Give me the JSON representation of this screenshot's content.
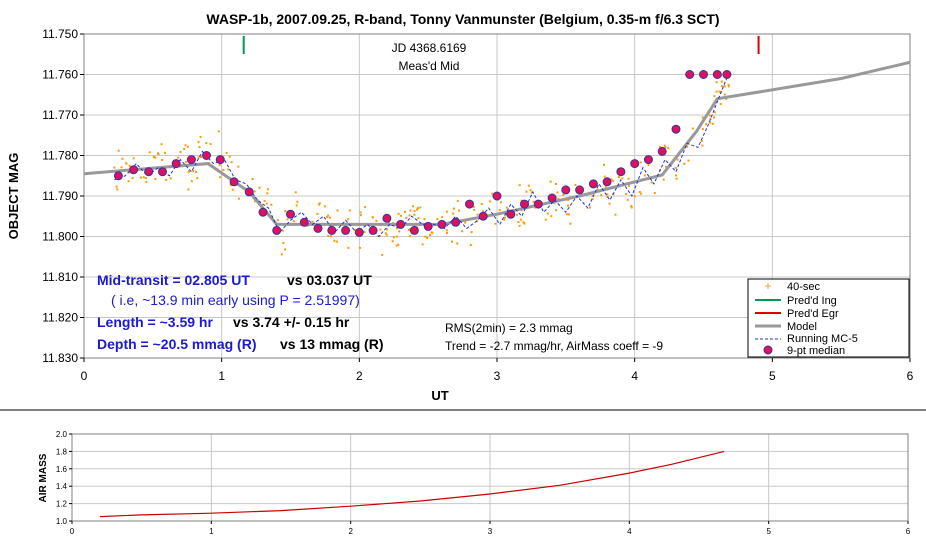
{
  "chart_data": [
    {
      "type": "scatter",
      "title": "WASP-1b, 2007.09.25, R-band, Tonny Vanmunster (Belgium, 0.35-m f/6.3 SCT)",
      "xlabel": "UT",
      "ylabel": "OBJECT MAG",
      "xlim": [
        0,
        6
      ],
      "ylim": [
        11.75,
        11.83
      ],
      "y_inverted": true,
      "grid": true,
      "legend_position": "bottom-right",
      "xticks": [
        "0",
        "1",
        "2",
        "3",
        "4",
        "5",
        "6"
      ],
      "yticks": [
        "11.750",
        "11.760",
        "11.770",
        "11.780",
        "11.790",
        "11.800",
        "11.810",
        "11.820",
        "11.830"
      ],
      "annotations": {
        "jd_line1": "JD 4368.6169",
        "jd_line2": "Meas'd Mid",
        "midtransit_label": "Mid-transit = 02.805 UT",
        "midtransit_vs": "vs 03.037 UT",
        "early_note": "( i.e, ~13.9 min early using P = 2.51997)",
        "length_label": "Length = ~3.59 hr",
        "length_vs": "vs 3.74 +/- 0.15 hr",
        "depth_label": "Depth = ~20.5 mmag (R)",
        "depth_vs": "vs 13 mmag (R)",
        "rms": "RMS(2min) = 2.3 mmag",
        "trend": "Trend = -2.7 mmag/hr, AirMass coeff = -9"
      },
      "markers": {
        "ingress_x": 1.16,
        "egress_x": 4.9
      },
      "series": [
        {
          "name": "40-sec",
          "color": "#ff9900",
          "style": "dots",
          "noise_seed": 7,
          "count": 330,
          "x_range": [
            0.22,
            4.72
          ]
        },
        {
          "name": "Pred'd Ing",
          "color": "#00994d"
        },
        {
          "name": "Pred'd Egr",
          "color": "#dd0000"
        },
        {
          "name": "Model",
          "color": "#999999",
          "x": [
            0,
            0.9,
            1.2,
            1.4,
            2.0,
            2.6,
            3.0,
            3.6,
            4.2,
            4.45,
            4.6,
            5.5,
            6.0
          ],
          "y": [
            11.7845,
            11.782,
            11.789,
            11.797,
            11.797,
            11.797,
            11.7945,
            11.79,
            11.7848,
            11.774,
            11.766,
            11.761,
            11.757
          ]
        },
        {
          "name": "Running MC-5",
          "color": "#2233cc",
          "x": [
            0.22,
            0.3,
            0.38,
            0.46,
            0.54,
            0.62,
            0.7,
            0.78,
            0.86,
            0.94,
            1.02,
            1.1,
            1.18,
            1.26,
            1.34,
            1.42,
            1.5,
            1.58,
            1.66,
            1.74,
            1.82,
            1.9,
            1.98,
            2.06,
            2.14,
            2.22,
            2.3,
            2.38,
            2.46,
            2.54,
            2.62,
            2.7,
            2.78,
            2.86,
            2.94,
            3.02,
            3.1,
            3.18,
            3.26,
            3.34,
            3.42,
            3.5,
            3.58,
            3.66,
            3.74,
            3.82,
            3.9,
            3.98,
            4.06,
            4.14,
            4.22,
            4.3,
            4.38,
            4.46,
            4.54,
            4.62,
            4.68
          ],
          "y": [
            11.786,
            11.785,
            11.782,
            11.785,
            11.783,
            11.785,
            11.781,
            11.784,
            11.779,
            11.782,
            11.781,
            11.786,
            11.787,
            11.791,
            11.793,
            11.799,
            11.796,
            11.794,
            11.797,
            11.795,
            11.799,
            11.796,
            11.799,
            11.797,
            11.8,
            11.797,
            11.798,
            11.795,
            11.797,
            11.797,
            11.798,
            11.795,
            11.798,
            11.796,
            11.793,
            11.797,
            11.792,
            11.795,
            11.789,
            11.794,
            11.791,
            11.794,
            11.79,
            11.793,
            11.787,
            11.791,
            11.786,
            11.79,
            11.783,
            11.787,
            11.781,
            11.784,
            11.777,
            11.778,
            11.772,
            11.765,
            11.76
          ]
        },
        {
          "name": "9-pt median",
          "color": "#e0105a",
          "x": [
            0.25,
            0.36,
            0.47,
            0.57,
            0.67,
            0.78,
            0.89,
            0.99,
            1.09,
            1.2,
            1.3,
            1.4,
            1.5,
            1.6,
            1.7,
            1.8,
            1.9,
            2.0,
            2.1,
            2.2,
            2.3,
            2.4,
            2.5,
            2.6,
            2.7,
            2.8,
            2.9,
            3.0,
            3.1,
            3.2,
            3.3,
            3.4,
            3.5,
            3.6,
            3.7,
            3.8,
            3.9,
            4.0,
            4.1,
            4.2,
            4.3,
            4.4,
            4.5,
            4.6,
            4.67
          ],
          "y": [
            11.785,
            11.7835,
            11.784,
            11.784,
            11.782,
            11.781,
            11.78,
            11.781,
            11.7865,
            11.789,
            11.794,
            11.7985,
            11.7945,
            11.7965,
            11.798,
            11.7985,
            11.7985,
            11.799,
            11.7985,
            11.7955,
            11.797,
            11.7985,
            11.7975,
            11.797,
            11.7965,
            11.792,
            11.795,
            11.79,
            11.7945,
            11.792,
            11.792,
            11.7905,
            11.7885,
            11.7885,
            11.787,
            11.7865,
            11.784,
            11.782,
            11.781,
            11.779,
            11.7735,
            11.76,
            11.76,
            11.76,
            11.76
          ]
        }
      ]
    },
    {
      "type": "line",
      "xlabel": "",
      "ylabel": "AIR MASS",
      "xlim": [
        0,
        6
      ],
      "ylim": [
        1.0,
        2.0
      ],
      "grid": true,
      "xticks": [
        "0",
        "1",
        "2",
        "3",
        "4",
        "5",
        "6"
      ],
      "yticks": [
        "1.0",
        "1.2",
        "1.4",
        "1.6",
        "1.8",
        "2.0"
      ],
      "series": [
        {
          "color": "#cc0000",
          "x": [
            0.2,
            0.5,
            1.0,
            1.5,
            2.0,
            2.5,
            3.0,
            3.5,
            4.0,
            4.3,
            4.68
          ],
          "y": [
            1.05,
            1.07,
            1.09,
            1.12,
            1.17,
            1.23,
            1.31,
            1.41,
            1.55,
            1.65,
            1.8
          ]
        }
      ]
    }
  ]
}
